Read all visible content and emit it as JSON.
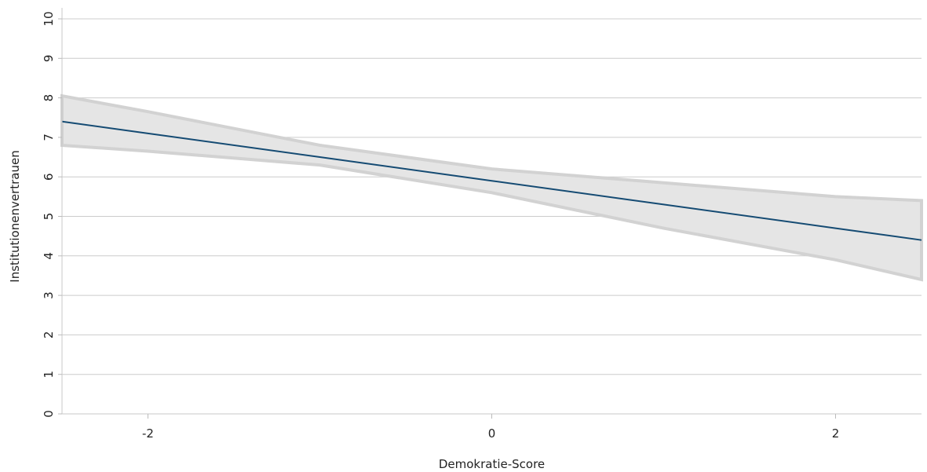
{
  "chart_data": {
    "type": "line",
    "title": "",
    "xlabel": "Demokratie-Score",
    "ylabel": "Institutionenvertrauen",
    "xlim": [
      -2.5,
      2.5
    ],
    "ylim": [
      0,
      10
    ],
    "x_ticks": [
      -2,
      0,
      2
    ],
    "x_tick_labels": [
      "-2",
      "0",
      "2"
    ],
    "y_ticks": [
      0,
      1,
      2,
      3,
      4,
      5,
      6,
      7,
      8,
      9,
      10
    ],
    "y_tick_labels": [
      "0",
      "1",
      "2",
      "3",
      "4",
      "5",
      "6",
      "7",
      "8",
      "9",
      "10"
    ],
    "grid": "horizontal",
    "legend": "none",
    "series": [
      {
        "x": [
          -2.5,
          -2,
          -1,
          0,
          1,
          2,
          2.5
        ],
        "y": [
          7.4,
          7.1,
          6.5,
          5.9,
          5.3,
          4.7,
          4.4
        ],
        "ci_lower": [
          6.8,
          6.65,
          6.3,
          5.6,
          4.7,
          3.9,
          3.4
        ],
        "ci_upper": [
          8.05,
          7.65,
          6.8,
          6.2,
          5.85,
          5.5,
          5.4
        ]
      }
    ],
    "colors": {
      "line": "#154b73",
      "band_fill": "#e5e5e5",
      "band_stroke": "#d2d2d2"
    }
  }
}
